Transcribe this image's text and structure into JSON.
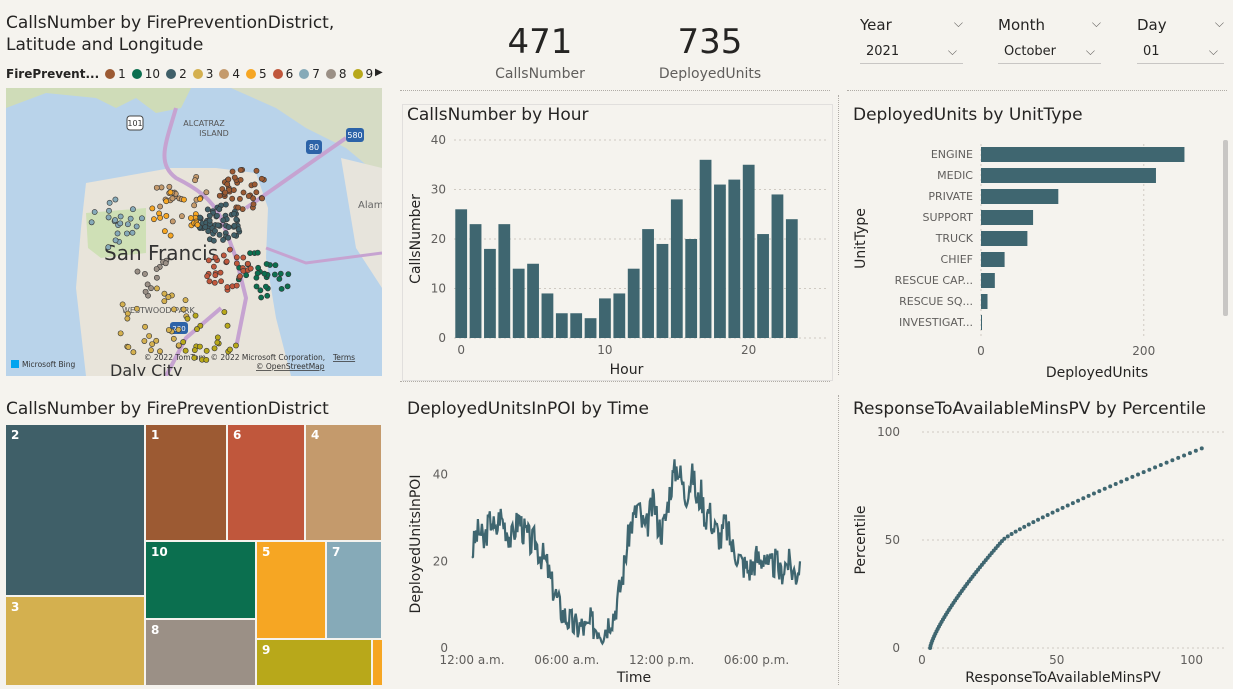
{
  "map_panel": {
    "title": "CallsNumber by FirePreventionDistrict, Latitude and Longitude",
    "title_line1": "CallsNumber by FirePreventionDistrict,",
    "title_line2": "Latitude and Longitude",
    "legend_title": "FirePrevent...",
    "legend_items": [
      {
        "label": "1",
        "color": "#9c5a33"
      },
      {
        "label": "10",
        "color": "#0b6f4f"
      },
      {
        "label": "2",
        "color": "#3f5f68"
      },
      {
        "label": "3",
        "color": "#d4b04f"
      },
      {
        "label": "4",
        "color": "#c49a6c"
      },
      {
        "label": "5",
        "color": "#f6a623"
      },
      {
        "label": "6",
        "color": "#c0573c"
      },
      {
        "label": "7",
        "color": "#86aab8"
      },
      {
        "label": "8",
        "color": "#9b9086"
      },
      {
        "label": "9",
        "color": "#b8a81a"
      }
    ],
    "map_labels": {
      "city": "San Francis",
      "alcatraz": "ALCATRAZ",
      "island": "ISLAND",
      "westwood": "WESTWOOD PARK",
      "alameda": "Alam",
      "daly_city": "Daly City",
      "copyright": "© 2022 TomTom, © 2022 Microsoft Corporation,",
      "terms": "Terms",
      "osm": "© OpenStreetMap",
      "bing": "Microsoft Bing",
      "hwy101": "101",
      "hwy80": "80",
      "hwy580": "580",
      "hwy280": "280"
    }
  },
  "kpis": [
    {
      "value": "471",
      "label": "CallsNumber"
    },
    {
      "value": "735",
      "label": "DeployedUnits"
    }
  ],
  "slicers": [
    {
      "label": "Year",
      "selected": "2021"
    },
    {
      "label": "Month",
      "selected": "October"
    },
    {
      "label": "Day",
      "selected": "01"
    }
  ],
  "colors": {
    "bar": "#3f6670",
    "line": "#3f6670",
    "background": "#f5f3ee"
  },
  "charts": {
    "calls_by_hour": {
      "title": "CallsNumber by Hour"
    },
    "units_by_type": {
      "title": "DeployedUnits by UnitType"
    },
    "treemap": {
      "title": "CallsNumber by FirePreventionDistrict"
    },
    "units_in_poi": {
      "title": "DeployedUnitsInPOI by Time"
    },
    "response": {
      "title": "ResponseToAvailableMinsPV by Percentile"
    }
  },
  "chart_data": [
    {
      "type": "bar",
      "title": "CallsNumber by Hour",
      "xlabel": "Hour",
      "ylabel": "CallsNumber",
      "categories": [
        0,
        1,
        2,
        3,
        4,
        5,
        6,
        7,
        8,
        9,
        10,
        11,
        12,
        13,
        14,
        15,
        16,
        17,
        18,
        19,
        20,
        21,
        22,
        23
      ],
      "values": [
        26,
        23,
        18,
        23,
        14,
        15,
        9,
        5,
        5,
        4,
        8,
        9,
        14,
        22,
        19,
        28,
        20,
        36,
        31,
        32,
        35,
        21,
        29,
        24
      ],
      "ylim": [
        0,
        40
      ],
      "yticks": [
        0,
        10,
        20,
        30,
        40
      ],
      "xticks": [
        0,
        10,
        20
      ]
    },
    {
      "type": "bar",
      "orientation": "horizontal",
      "title": "DeployedUnits by UnitType",
      "xlabel": "DeployedUnits",
      "ylabel": "UnitType",
      "categories": [
        "ENGINE",
        "MEDIC",
        "PRIVATE",
        "SUPPORT",
        "TRUCK",
        "CHIEF",
        "RESCUE CAP...",
        "RESCUE SQ...",
        "INVESTIGAT..."
      ],
      "values": [
        250,
        215,
        95,
        64,
        57,
        29,
        17,
        8,
        1
      ],
      "xlim": [
        0,
        290
      ],
      "xticks": [
        0,
        200
      ]
    },
    {
      "type": "treemap",
      "title": "CallsNumber by FirePreventionDistrict",
      "categories": [
        "2",
        "1",
        "6",
        "4",
        "3",
        "10",
        "5",
        "7",
        "8",
        "9"
      ],
      "colors": [
        "#3f5f68",
        "#9c5a33",
        "#c0573c",
        "#c49a6c",
        "#d4b04f",
        "#0b6f4f",
        "#f6a623",
        "#86aab8",
        "#9b9086",
        "#b8a81a"
      ]
    },
    {
      "type": "line",
      "title": "DeployedUnitsInPOI by Time",
      "xlabel": "Time",
      "ylabel": "DeployedUnitsInPOI",
      "xticks": [
        "12:00 a.m.",
        "06:00 a.m.",
        "12:00 p.m.",
        "06:00 p.m."
      ],
      "yticks": [
        0,
        20,
        40
      ],
      "ylim": [
        0,
        48
      ],
      "points_per_hour": 4,
      "values": [
        22,
        26,
        27,
        24,
        28,
        30,
        26,
        31,
        29,
        27,
        25,
        28,
        30,
        27,
        26,
        24,
        25,
        22,
        21,
        19,
        15,
        13,
        10,
        8,
        7,
        6,
        5,
        5,
        5,
        4,
        6,
        5,
        5,
        4,
        5,
        7,
        8,
        12,
        16,
        22,
        28,
        30,
        33,
        29,
        27,
        31,
        34,
        29,
        27,
        30,
        36,
        40,
        42,
        39,
        35,
        38,
        40,
        33,
        36,
        30,
        32,
        28,
        27,
        25,
        29,
        26,
        23,
        22,
        20,
        19,
        18,
        19,
        21,
        20,
        22,
        18,
        19,
        20,
        17,
        19,
        20,
        18,
        17,
        20
      ]
    },
    {
      "type": "scatter",
      "title": "ResponseToAvailableMinsPV by Percentile",
      "xlabel": "ResponseToAvailableMinsPV",
      "ylabel": "Percentile",
      "xlim": [
        0,
        105
      ],
      "ylim": [
        0,
        100
      ],
      "xticks": [
        0,
        50,
        100
      ],
      "yticks": [
        0,
        50,
        100
      ]
    }
  ]
}
